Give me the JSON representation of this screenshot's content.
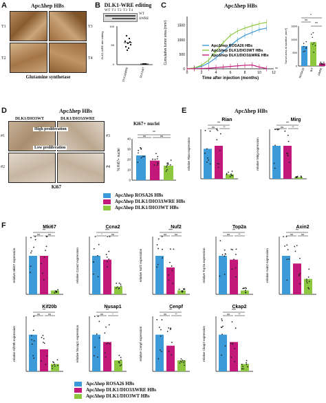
{
  "panels": {
    "A": {
      "letter": "A",
      "title": "ApcΔhep HBs",
      "sublabels": [
        "T1",
        "T3",
        "T2",
        "T4"
      ],
      "caption": "Glutamine synthetase"
    },
    "B": {
      "letter": "B",
      "title": "DLK1-WRE editing",
      "lanes": "WT T1 T2 T3 T4",
      "bands": [
        "WT",
        "ΔWRE"
      ],
      "ylabel": "DLK1-WRE site editing",
      "xcats": [
        "DLK1ΔWRE",
        "DLK1WT"
      ]
    },
    "C": {
      "letter": "C",
      "title": "ApcΔhep HBs",
      "xlabel": "Time after injection (months)",
      "ylabel": "Cumulative tumor area (mm²)",
      "yticks": [
        "0",
        "500",
        "1000",
        "1500"
      ],
      "xticks": [
        "0",
        "2",
        "4",
        "6",
        "8",
        "10",
        "12"
      ],
      "legend": [
        "ApcΔhep ROSA26 HBs",
        "ApcΔhep DLK1/DIO3WT HBs",
        "ApcΔhep DLK1/DIO3ΔWRE HBs"
      ],
      "inset_ylabel": "Tumor area at sacrifice (mm²)",
      "inset_xcats": [
        "ROSA26",
        "WT",
        "ΔWRE"
      ],
      "inset_yticks": [
        "0",
        "500",
        "1000",
        "1500"
      ],
      "sig": [
        "ns",
        "**",
        "ns",
        "*",
        "**"
      ]
    },
    "D": {
      "letter": "D",
      "title": "ApcΔhep HBs",
      "top": "High proliferation",
      "bottom": "Low proliferation",
      "col1": "DLK1/DIO3WT",
      "col2": "DLK1/DIO3ΔWRE",
      "caption": "Ki67",
      "sublabels": [
        "#1",
        "#3",
        "#2",
        "#4"
      ],
      "chart_title": "Ki67+ nuclei",
      "ylabel": "% Ki67+ nuclei",
      "yticks": [
        "0",
        "10",
        "20",
        "30",
        "40"
      ],
      "sig": [
        "ns",
        "ns",
        "**"
      ]
    },
    "E": {
      "letter": "E",
      "title": "ApcΔhep HBs",
      "genes": [
        "Rian",
        "Mirg"
      ],
      "ylabels": [
        "relative Rian expression",
        "relative Mirg expression"
      ],
      "sig": [
        "ns",
        "**",
        "**"
      ]
    },
    "F": {
      "letter": "F",
      "genes_row1": [
        "Mki67",
        "Ccna2",
        "Nuf2",
        "Top2a",
        "Axin2"
      ],
      "genes_row2": [
        "Kif20b",
        "Nusap1",
        "Cenpf",
        "Ckap2"
      ],
      "ylabels_row1": [
        "relative mki67 expression",
        "relative Ccna2 expression",
        "relative Nuf2 expression",
        "relative Top2a expression",
        "relative Axin2 expression"
      ],
      "ylabels_row2": [
        "relative Kif20b expression",
        "relative Nusap1 expression",
        "relative Cenpf expression",
        "relative Ckap2 expression"
      ],
      "sig_row1": [
        [
          "ns",
          "**",
          "ns"
        ],
        [
          "*",
          "***",
          "ns"
        ],
        [
          "ns",
          "***",
          "ns"
        ],
        [
          "ns",
          "**",
          "**"
        ],
        [
          "ns",
          "**",
          "ns"
        ]
      ],
      "sig_row2": [
        [
          "ns",
          "**",
          "ns"
        ],
        [
          "ns",
          "**",
          "*"
        ],
        [
          "ns",
          "**",
          "**"
        ],
        [
          "ns",
          "***",
          "**"
        ]
      ]
    }
  },
  "legend_mid": [
    "ApcΔhep ROSA26 HBs",
    "ApcΔhep DLK1/DIO3ΔWRE HBs",
    "ApcΔhep DLK1/DIO3WT HBs"
  ],
  "legend_bottom": [
    "ApcΔhep ROSA26 HBs",
    "ApcΔhep DLK1/DIO3ΔWRE HBs",
    "ApcΔhep DLK1/DIO3WT HBs"
  ],
  "colors": {
    "rosa": "#3d9ad9",
    "wt": "#8dc63f",
    "dwre": "#c2187a",
    "tissue_a": "#a67848",
    "tissue_d": "#cdbfae"
  },
  "chart_data": [
    {
      "type": "line",
      "title": "",
      "xlabel": "Time after injection (months)",
      "ylabel": "Cumulative tumor area (mm²)",
      "ylim": [
        0,
        1800
      ],
      "xlim": [
        0,
        12
      ],
      "series": [
        {
          "name": "ApcΔhep ROSA26 HBs",
          "x": [
            0,
            1,
            2,
            3,
            4,
            5,
            6,
            7,
            8,
            9,
            10,
            11
          ],
          "values": [
            0,
            20,
            80,
            200,
            380,
            600,
            800,
            1000,
            1150,
            1250,
            1350,
            1400
          ]
        },
        {
          "name": "ApcΔhep DLK1/DIO3WT HBs",
          "x": [
            0,
            1,
            2,
            3,
            4,
            5,
            6,
            7,
            8,
            9,
            10,
            11
          ],
          "values": [
            0,
            30,
            120,
            300,
            600,
            900,
            1150,
            1300,
            1400,
            1480,
            1550,
            1600
          ]
        },
        {
          "name": "ApcΔhep DLK1/DIO3ΔWRE HBs",
          "x": [
            0,
            1,
            2,
            3,
            4,
            5,
            6,
            7,
            8,
            9,
            10,
            11
          ],
          "values": [
            0,
            5,
            10,
            20,
            40,
            60,
            80,
            100,
            120,
            130,
            60,
            10
          ]
        }
      ]
    },
    {
      "type": "bar",
      "categories": [
        "ROSA26",
        "WT",
        "ΔWRE"
      ],
      "values": [
        750,
        900,
        100
      ],
      "ylim": [
        0,
        1500
      ],
      "ylabel": "Tumor area at sacrifice (mm²)"
    },
    {
      "type": "bar",
      "categories": [
        "ROSA26",
        "ΔWRE",
        "WT"
      ],
      "values": [
        24,
        19,
        14
      ],
      "ylim": [
        0,
        40
      ],
      "ylabel": "% Ki67+ nuclei"
    }
  ]
}
